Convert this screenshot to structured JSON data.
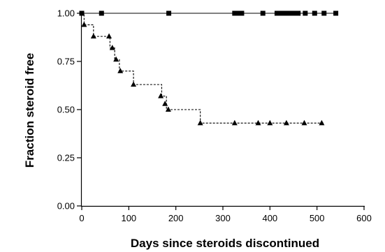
{
  "chart_data": {
    "type": "line",
    "title": "",
    "xlabel": "Days since steroids discontinued",
    "ylabel": "Fraction steroid free",
    "xlim": [
      0,
      600
    ],
    "ylim": [
      0,
      1
    ],
    "x_ticks": [
      0,
      100,
      200,
      300,
      400,
      500,
      600
    ],
    "y_ticks": [
      0,
      0.25,
      0.5,
      0.75,
      1
    ],
    "y_tick_labels": [
      "0.00",
      "0.25",
      "0.50",
      "0.75",
      "1.00"
    ],
    "grid": false,
    "legend": "none",
    "series": [
      {
        "line_style": "solid",
        "marker": "square",
        "color": "#000000",
        "steps": [
          [
            0,
            1.0
          ],
          [
            540,
            1.0
          ]
        ],
        "markers": [
          [
            0,
            1.0
          ],
          [
            42,
            1.0
          ],
          [
            185,
            1.0
          ],
          [
            325,
            1.0
          ],
          [
            330,
            1.0
          ],
          [
            335,
            1.0
          ],
          [
            340,
            1.0
          ],
          [
            385,
            1.0
          ],
          [
            415,
            1.0
          ],
          [
            422,
            1.0
          ],
          [
            428,
            1.0
          ],
          [
            435,
            1.0
          ],
          [
            441,
            1.0
          ],
          [
            448,
            1.0
          ],
          [
            455,
            1.0
          ],
          [
            460,
            1.0
          ],
          [
            475,
            1.0
          ],
          [
            495,
            1.0
          ],
          [
            515,
            1.0
          ],
          [
            540,
            1.0
          ]
        ]
      },
      {
        "line_style": "dashed",
        "marker": "triangle",
        "color": "#000000",
        "steps": [
          [
            0,
            1.0
          ],
          [
            5,
            0.94
          ],
          [
            25,
            0.88
          ],
          [
            60,
            0.82
          ],
          [
            70,
            0.76
          ],
          [
            80,
            0.7
          ],
          [
            110,
            0.63
          ],
          [
            170,
            0.57
          ],
          [
            180,
            0.5
          ],
          [
            252,
            0.43
          ],
          [
            515,
            0.43
          ]
        ],
        "markers": [
          [
            5,
            0.94
          ],
          [
            25,
            0.88
          ],
          [
            58,
            0.88
          ],
          [
            65,
            0.82
          ],
          [
            73,
            0.76
          ],
          [
            82,
            0.7
          ],
          [
            110,
            0.63
          ],
          [
            168,
            0.57
          ],
          [
            177,
            0.53
          ],
          [
            184,
            0.5
          ],
          [
            252,
            0.43
          ],
          [
            325,
            0.43
          ],
          [
            375,
            0.43
          ],
          [
            400,
            0.43
          ],
          [
            435,
            0.43
          ],
          [
            473,
            0.43
          ],
          [
            510,
            0.43
          ]
        ]
      }
    ]
  }
}
